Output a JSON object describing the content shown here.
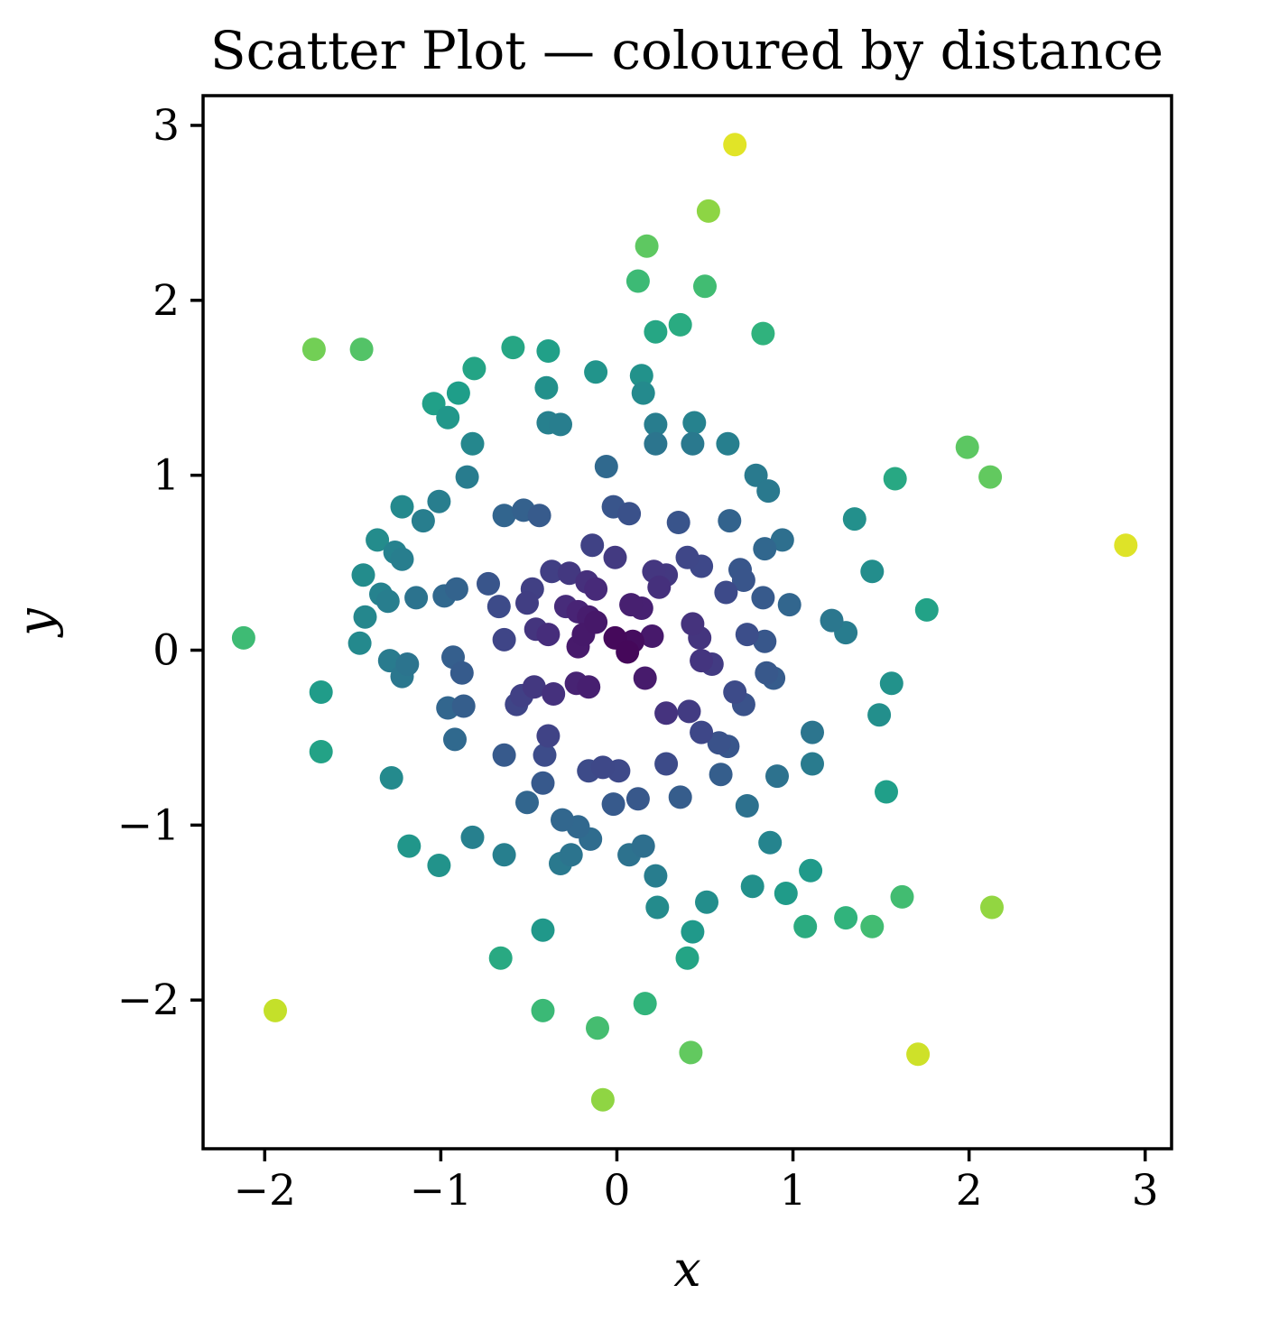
{
  "figure": {
    "title": "Scatter Plot — coloured by distance",
    "background_color": "#ffffff",
    "text_color": "#000000"
  },
  "chart_data": {
    "type": "scatter",
    "title": "Scatter Plot — coloured by distance",
    "xlabel": "x",
    "ylabel": "y",
    "xlim": [
      -2.35,
      3.15
    ],
    "ylim": [
      -2.85,
      3.17
    ],
    "x_ticks": [
      -2,
      -1,
      0,
      1,
      2,
      3
    ],
    "y_ticks": [
      3,
      2,
      1,
      0,
      -1,
      -2
    ],
    "grid": false,
    "legend": "none",
    "color_by": "distance from origin",
    "colormap": "viridis",
    "colormap_stops": [
      "#440154",
      "#482878",
      "#3e4989",
      "#31688e",
      "#26828e",
      "#1f9e89",
      "#35b779",
      "#6ece58",
      "#b5de2b",
      "#fde725"
    ],
    "vmin": 0,
    "vmax": 3.1,
    "marker_radius_px": 13,
    "points": [
      [
        -1.72,
        1.72
      ],
      [
        -1.45,
        1.72
      ],
      [
        -0.59,
        1.73
      ],
      [
        -0.39,
        1.71
      ],
      [
        -0.81,
        1.61
      ],
      [
        -0.9,
        1.47
      ],
      [
        -1.04,
        1.41
      ],
      [
        -0.96,
        1.33
      ],
      [
        -0.4,
        1.5
      ],
      [
        -0.39,
        1.3
      ],
      [
        -0.82,
        1.18
      ],
      [
        0.67,
        2.89
      ],
      [
        0.52,
        2.51
      ],
      [
        0.17,
        2.31
      ],
      [
        0.12,
        2.11
      ],
      [
        0.5,
        2.08
      ],
      [
        0.22,
        1.82
      ],
      [
        0.36,
        1.86
      ],
      [
        0.83,
        1.81
      ],
      [
        -0.12,
        1.59
      ],
      [
        0.14,
        1.57
      ],
      [
        0.15,
        1.47
      ],
      [
        -0.32,
        1.29
      ],
      [
        0.22,
        1.29
      ],
      [
        0.44,
        1.3
      ],
      [
        0.22,
        1.18
      ],
      [
        0.43,
        1.18
      ],
      [
        0.63,
        1.18
      ],
      [
        1.99,
        1.16
      ],
      [
        2.12,
        0.99
      ],
      [
        1.58,
        0.98
      ],
      [
        1.35,
        0.75
      ],
      [
        2.89,
        0.6
      ],
      [
        -2.12,
        0.07
      ],
      [
        1.76,
        0.23
      ],
      [
        -0.85,
        0.99
      ],
      [
        -1.22,
        0.82
      ],
      [
        -1.01,
        0.85
      ],
      [
        -1.1,
        0.74
      ],
      [
        -0.64,
        0.77
      ],
      [
        -0.53,
        0.8
      ],
      [
        -0.44,
        0.77
      ],
      [
        -1.36,
        0.63
      ],
      [
        -1.26,
        0.56
      ],
      [
        -1.22,
        0.52
      ],
      [
        -1.44,
        0.43
      ],
      [
        -1.34,
        0.32
      ],
      [
        -1.3,
        0.28
      ],
      [
        -1.14,
        0.3
      ],
      [
        -0.98,
        0.31
      ],
      [
        -0.91,
        0.35
      ],
      [
        -0.73,
        0.38
      ],
      [
        -0.67,
        0.25
      ],
      [
        -1.43,
        0.19
      ],
      [
        -1.46,
        0.04
      ],
      [
        -1.29,
        -0.06
      ],
      [
        -1.19,
        -0.08
      ],
      [
        -1.22,
        -0.15
      ],
      [
        -0.93,
        -0.04
      ],
      [
        -0.88,
        -0.13
      ],
      [
        -1.68,
        -0.24
      ],
      [
        -0.96,
        -0.33
      ],
      [
        -0.87,
        -0.32
      ],
      [
        -0.92,
        -0.51
      ],
      [
        -1.68,
        -0.58
      ],
      [
        -1.28,
        -0.73
      ],
      [
        -0.64,
        -0.6
      ],
      [
        -0.42,
        -0.76
      ],
      [
        -0.51,
        -0.87
      ],
      [
        -0.02,
        0.82
      ],
      [
        0.07,
        0.78
      ],
      [
        0.35,
        0.73
      ],
      [
        0.64,
        0.74
      ],
      [
        -0.06,
        1.05
      ],
      [
        0.79,
        1.0
      ],
      [
        0.86,
        0.91
      ],
      [
        -0.14,
        0.6
      ],
      [
        -0.01,
        0.53
      ],
      [
        0.4,
        0.53
      ],
      [
        0.48,
        0.48
      ],
      [
        -0.37,
        0.45
      ],
      [
        -0.27,
        0.44
      ],
      [
        -0.48,
        0.35
      ],
      [
        -0.51,
        0.27
      ],
      [
        -0.29,
        0.25
      ],
      [
        -0.17,
        0.39
      ],
      [
        -0.12,
        0.35
      ],
      [
        0.84,
        0.58
      ],
      [
        0.94,
        0.63
      ],
      [
        0.7,
        0.46
      ],
      [
        0.72,
        0.4
      ],
      [
        1.45,
        0.45
      ],
      [
        0.62,
        0.33
      ],
      [
        0.83,
        0.3
      ],
      [
        0.98,
        0.26
      ],
      [
        1.22,
        0.17
      ],
      [
        1.3,
        0.1
      ],
      [
        0.08,
        0.26
      ],
      [
        0.14,
        0.24
      ],
      [
        0.21,
        0.45
      ],
      [
        0.28,
        0.43
      ],
      [
        0.24,
        0.36
      ],
      [
        -0.22,
        0.22
      ],
      [
        -0.16,
        0.19
      ],
      [
        -0.12,
        0.16
      ],
      [
        -0.46,
        0.12
      ],
      [
        -0.39,
        0.09
      ],
      [
        -0.64,
        0.06
      ],
      [
        -0.19,
        0.09
      ],
      [
        -0.22,
        0.02
      ],
      [
        -0.01,
        0.07
      ],
      [
        0.09,
        0.05
      ],
      [
        0.06,
        -0.01
      ],
      [
        0.2,
        0.08
      ],
      [
        0.43,
        0.15
      ],
      [
        0.47,
        0.07
      ],
      [
        0.48,
        -0.06
      ],
      [
        0.54,
        -0.08
      ],
      [
        0.16,
        -0.16
      ],
      [
        -0.23,
        -0.19
      ],
      [
        -0.16,
        -0.21
      ],
      [
        -0.47,
        -0.21
      ],
      [
        -0.54,
        -0.26
      ],
      [
        -0.57,
        -0.31
      ],
      [
        -0.36,
        -0.25
      ],
      [
        0.74,
        0.09
      ],
      [
        0.84,
        0.05
      ],
      [
        0.85,
        -0.13
      ],
      [
        0.89,
        -0.16
      ],
      [
        0.67,
        -0.24
      ],
      [
        0.72,
        -0.31
      ],
      [
        1.56,
        -0.19
      ],
      [
        1.49,
        -0.37
      ],
      [
        0.28,
        -0.36
      ],
      [
        0.41,
        -0.35
      ],
      [
        0.48,
        -0.47
      ],
      [
        -0.39,
        -0.49
      ],
      [
        -0.41,
        -0.6
      ],
      [
        0.59,
        -0.71
      ],
      [
        0.58,
        -0.53
      ],
      [
        0.63,
        -0.55
      ],
      [
        1.11,
        -0.47
      ],
      [
        1.11,
        -0.65
      ],
      [
        0.91,
        -0.72
      ],
      [
        0.74,
        -0.89
      ],
      [
        1.53,
        -0.81
      ],
      [
        0.28,
        -0.65
      ],
      [
        -0.16,
        -0.69
      ],
      [
        -0.08,
        -0.67
      ],
      [
        0.01,
        -0.69
      ],
      [
        -0.02,
        -0.88
      ],
      [
        0.12,
        -0.85
      ],
      [
        0.36,
        -0.84
      ],
      [
        -0.31,
        -0.97
      ],
      [
        -0.22,
        -1.01
      ],
      [
        -0.15,
        -1.08
      ],
      [
        -0.26,
        -1.17
      ],
      [
        -0.32,
        -1.22
      ],
      [
        -1.18,
        -1.12
      ],
      [
        -1.01,
        -1.23
      ],
      [
        -0.82,
        -1.07
      ],
      [
        -0.64,
        -1.17
      ],
      [
        0.07,
        -1.17
      ],
      [
        0.15,
        -1.12
      ],
      [
        0.22,
        -1.29
      ],
      [
        0.87,
        -1.1
      ],
      [
        1.1,
        -1.26
      ],
      [
        0.77,
        -1.35
      ],
      [
        0.96,
        -1.39
      ],
      [
        0.23,
        -1.47
      ],
      [
        0.43,
        -1.61
      ],
      [
        0.4,
        -1.76
      ],
      [
        0.51,
        -1.44
      ],
      [
        1.07,
        -1.58
      ],
      [
        1.3,
        -1.53
      ],
      [
        1.45,
        -1.58
      ],
      [
        1.62,
        -1.41
      ],
      [
        2.13,
        -1.47
      ],
      [
        -0.42,
        -1.6
      ],
      [
        -0.66,
        -1.76
      ],
      [
        -1.94,
        -2.06
      ],
      [
        -0.42,
        -2.06
      ],
      [
        0.16,
        -2.02
      ],
      [
        -0.11,
        -2.16
      ],
      [
        0.42,
        -2.3
      ],
      [
        -0.08,
        -2.57
      ],
      [
        1.71,
        -2.31
      ]
    ]
  }
}
